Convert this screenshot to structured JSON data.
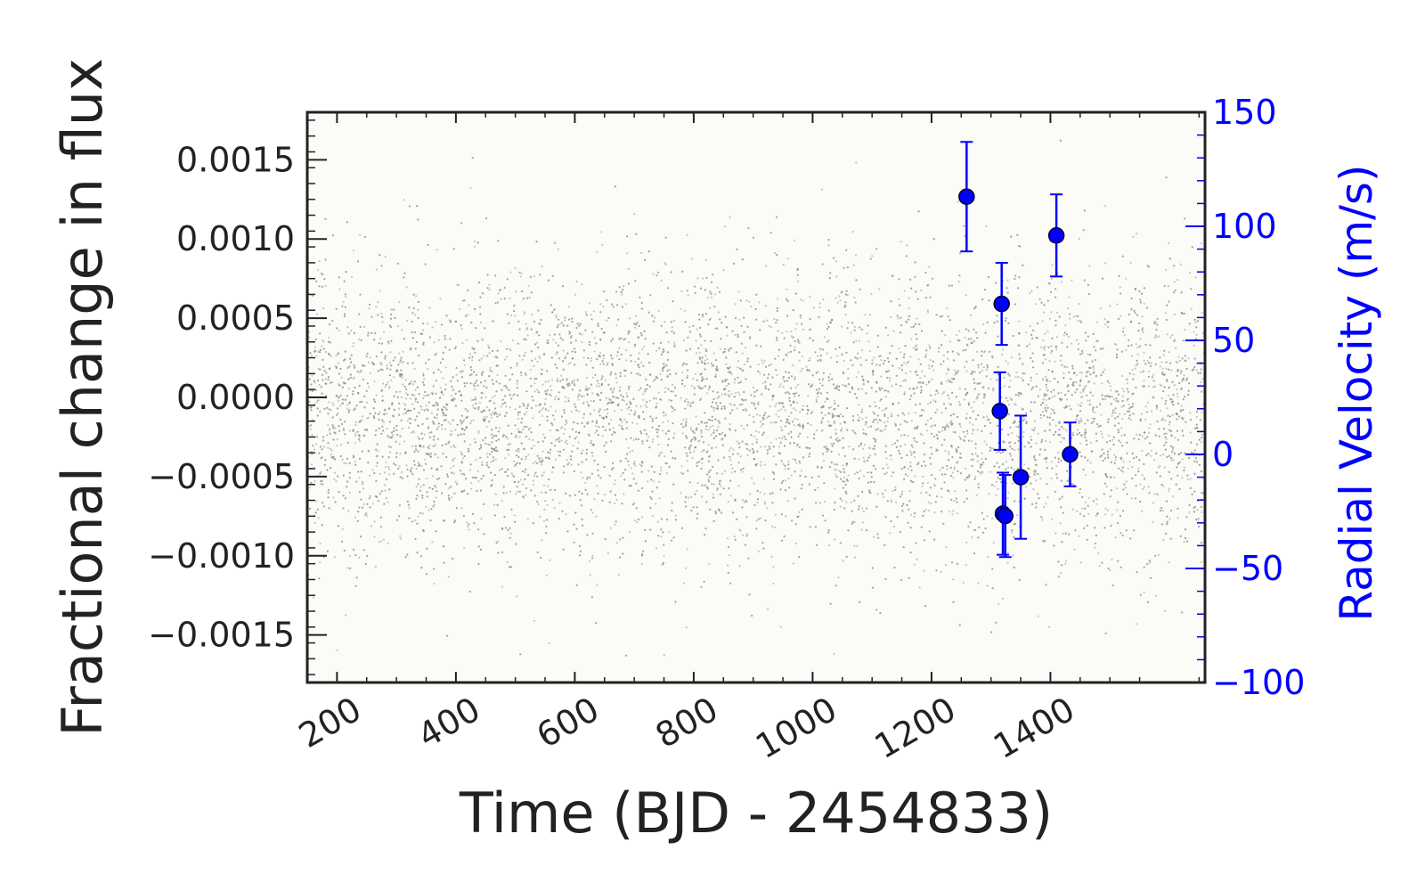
{
  "chart_data": {
    "type": "scatter",
    "xlabel": "Time (BJD - 2454833)",
    "ylabel": "Fractional change in flux",
    "y2label": "Radial Velocity (m/s)",
    "xlim": [
      150,
      1660
    ],
    "ylim": [
      -0.0018,
      0.0018
    ],
    "y2lim": [
      -100,
      150
    ],
    "x_ticks": [
      "200",
      "400",
      "600",
      "800",
      "1000",
      "1200",
      "1400"
    ],
    "y_ticks": [
      "0.0015",
      "0.0010",
      "0.0005",
      "0.0000",
      "−0.0005",
      "−0.0010",
      "−0.0015"
    ],
    "y2_ticks": [
      "150",
      "100",
      "50",
      "0",
      "−50",
      "−100"
    ],
    "y2_color": "#0000ff",
    "grid": false,
    "series": [
      {
        "kind": "dense-scatter",
        "color": "#808080",
        "x_range": [
          150,
          1660
        ],
        "center": -0.0001,
        "spread": 0.00045,
        "gaps": [
          [
            770,
            778
          ],
          [
            985,
            988
          ],
          [
            1250,
            1253
          ]
        ]
      },
      {
        "kind": "errorbar",
        "axis": "y2",
        "color": "#0000ff",
        "x": [
          1259,
          1315,
          1318,
          1320,
          1324,
          1350,
          1410,
          1433
        ],
        "y": [
          113,
          19,
          66,
          -26,
          -27,
          -10,
          96,
          0
        ],
        "yerr": [
          24,
          17,
          18,
          18,
          18,
          27,
          18,
          14
        ]
      }
    ]
  }
}
